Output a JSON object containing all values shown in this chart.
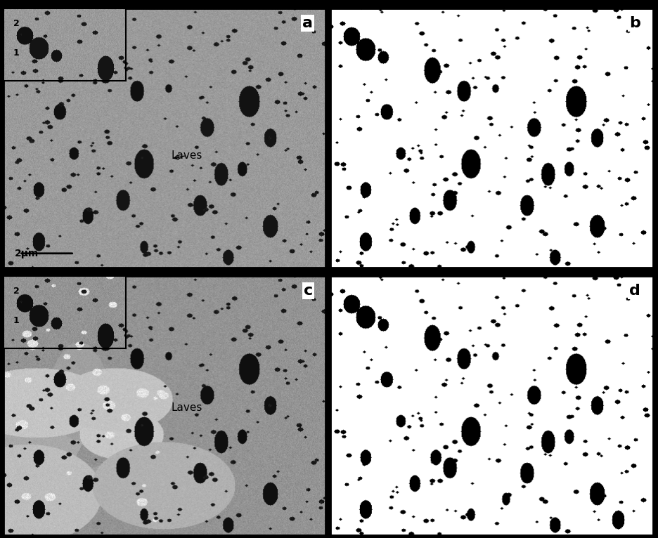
{
  "figure_width": 9.36,
  "figure_height": 7.66,
  "dpi": 100,
  "background_color": "#000000",
  "panel_labels": [
    "a",
    "b",
    "c",
    "d"
  ],
  "panel_label_fontsize": 16,
  "panel_label_fontweight": "bold",
  "label_a": "a",
  "label_b": "b",
  "label_c": "c",
  "label_d": "d",
  "scalebar_text": "2μm",
  "laves_text": "Laves",
  "inset_label_1": "1",
  "inset_label_2": "2",
  "bg_gray_a": 155,
  "bg_gray_c": 148,
  "bg_gray_b": 240,
  "bg_gray_d": 240,
  "particle_dark": 20,
  "particle_medium": 80,
  "noise_std": 8,
  "outer_border_color": "#000000",
  "outer_border_lw": 2,
  "divider_lw": 2
}
